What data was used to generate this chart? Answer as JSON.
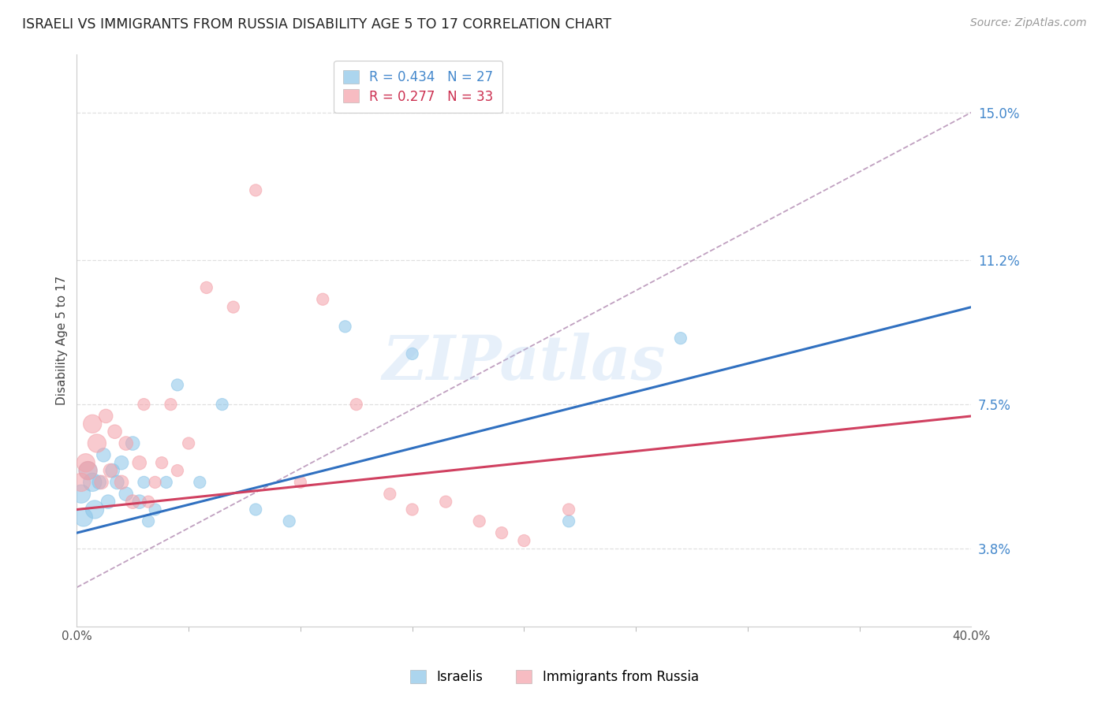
{
  "title": "ISRAELI VS IMMIGRANTS FROM RUSSIA DISABILITY AGE 5 TO 17 CORRELATION CHART",
  "source": "Source: ZipAtlas.com",
  "ylabel": "Disability Age 5 to 17",
  "ytick_values": [
    3.8,
    7.5,
    11.2,
    15.0
  ],
  "xmin": 0.0,
  "xmax": 40.0,
  "ymin": 1.8,
  "ymax": 16.5,
  "legend_label_blue": "R = 0.434   N = 27",
  "legend_label_pink": "R = 0.277   N = 33",
  "legend_label_blue2": "Israelis",
  "legend_label_pink2": "Immigrants from Russia",
  "blue_color": "#89c4e8",
  "pink_color": "#f4a0a8",
  "blue_line_color": "#3070c0",
  "pink_line_color": "#d04060",
  "dashed_line_color": "#c0a0c0",
  "israelis_x": [
    0.2,
    0.3,
    0.5,
    0.7,
    0.8,
    1.0,
    1.2,
    1.4,
    1.6,
    1.8,
    2.0,
    2.2,
    2.5,
    2.8,
    3.0,
    3.2,
    3.5,
    4.0,
    4.5,
    5.5,
    6.5,
    8.0,
    9.5,
    12.0,
    15.0,
    22.0,
    27.0
  ],
  "israelis_y": [
    5.2,
    4.6,
    5.8,
    5.5,
    4.8,
    5.5,
    6.2,
    5.0,
    5.8,
    5.5,
    6.0,
    5.2,
    6.5,
    5.0,
    5.5,
    4.5,
    4.8,
    5.5,
    8.0,
    5.5,
    7.5,
    4.8,
    4.5,
    9.5,
    8.8,
    4.5,
    9.2
  ],
  "russia_x": [
    0.2,
    0.4,
    0.5,
    0.7,
    0.9,
    1.1,
    1.3,
    1.5,
    1.7,
    2.0,
    2.2,
    2.5,
    2.8,
    3.0,
    3.2,
    3.5,
    3.8,
    4.2,
    4.5,
    5.0,
    5.8,
    7.0,
    8.0,
    10.0,
    11.0,
    12.5,
    14.0,
    15.0,
    16.5,
    18.0,
    19.0,
    20.0,
    22.0
  ],
  "russia_y": [
    5.5,
    6.0,
    5.8,
    7.0,
    6.5,
    5.5,
    7.2,
    5.8,
    6.8,
    5.5,
    6.5,
    5.0,
    6.0,
    7.5,
    5.0,
    5.5,
    6.0,
    7.5,
    5.8,
    6.5,
    10.5,
    10.0,
    13.0,
    5.5,
    10.2,
    7.5,
    5.2,
    4.8,
    5.0,
    4.5,
    4.2,
    4.0,
    4.8
  ],
  "blue_line_x0": 0.0,
  "blue_line_y0": 4.2,
  "blue_line_x1": 40.0,
  "blue_line_y1": 10.0,
  "pink_line_x0": 0.0,
  "pink_line_y0": 4.8,
  "pink_line_x1": 40.0,
  "pink_line_y1": 7.2,
  "dash_line_x0": 0.0,
  "dash_line_y0": 2.8,
  "dash_line_x1": 40.0,
  "dash_line_y1": 15.0,
  "watermark": "ZIPatlas",
  "background_color": "#ffffff",
  "grid_color": "#e0e0e0"
}
